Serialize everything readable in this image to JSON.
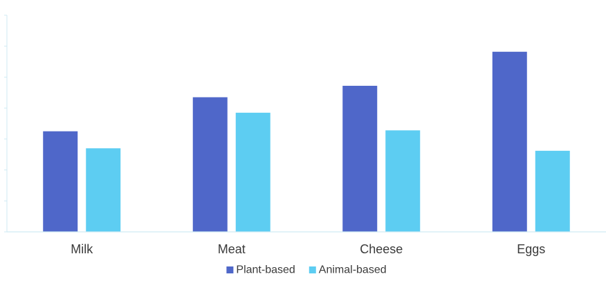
{
  "chart_data": {
    "type": "bar",
    "title": "",
    "xlabel": "",
    "ylabel": "",
    "categories": [
      "Milk",
      "Meat",
      "Cheese",
      "Eggs"
    ],
    "series": [
      {
        "name": "Plant-based",
        "color": "#4F67C9",
        "values": [
          32.5,
          43.5,
          47.2,
          58.2
        ]
      },
      {
        "name": "Animal-based",
        "color": "#5DCDF2",
        "values": [
          27.0,
          38.5,
          32.8,
          26.2
        ]
      }
    ],
    "ylim": [
      0,
      70
    ],
    "ytick_step": 10,
    "grid": false,
    "legend_position": "bottom-center"
  }
}
